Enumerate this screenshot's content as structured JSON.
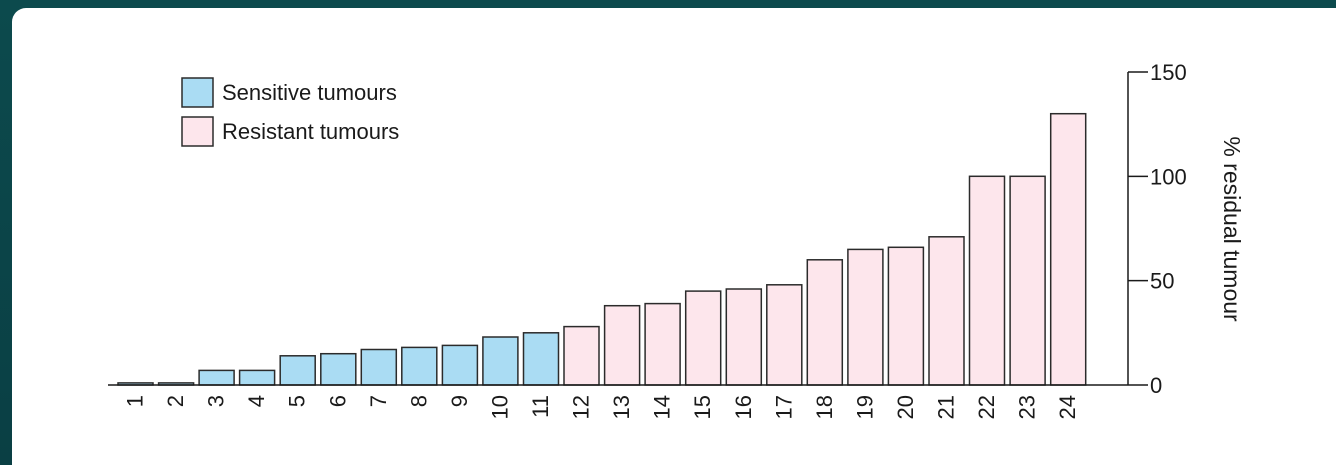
{
  "chart_data": {
    "type": "bar",
    "categories": [
      "1",
      "2",
      "3",
      "4",
      "5",
      "6",
      "7",
      "8",
      "9",
      "10",
      "11",
      "12",
      "13",
      "14",
      "15",
      "16",
      "17",
      "18",
      "19",
      "20",
      "21",
      "22",
      "23",
      "24"
    ],
    "values": [
      1,
      1,
      7,
      7,
      14,
      15,
      17,
      18,
      19,
      23,
      25,
      28,
      38,
      39,
      45,
      46,
      48,
      60,
      65,
      66,
      71,
      100,
      100,
      130
    ],
    "groups": [
      "sensitive",
      "sensitive",
      "sensitive",
      "sensitive",
      "sensitive",
      "sensitive",
      "sensitive",
      "sensitive",
      "sensitive",
      "sensitive",
      "sensitive",
      "resistant",
      "resistant",
      "resistant",
      "resistant",
      "resistant",
      "resistant",
      "resistant",
      "resistant",
      "resistant",
      "resistant",
      "resistant",
      "resistant",
      "resistant"
    ],
    "ylabel": "% residual tumour",
    "ylim": [
      0,
      150
    ],
    "yticks": [
      "0",
      "50",
      "100",
      "150"
    ],
    "y_axis_side": "right",
    "legend": [
      {
        "label": "Sensitive tumours",
        "color": "#aadcf3"
      },
      {
        "label": "Resistant tumours",
        "color": "#fde6ec"
      }
    ],
    "legend_position": "top-left",
    "grid": false
  }
}
